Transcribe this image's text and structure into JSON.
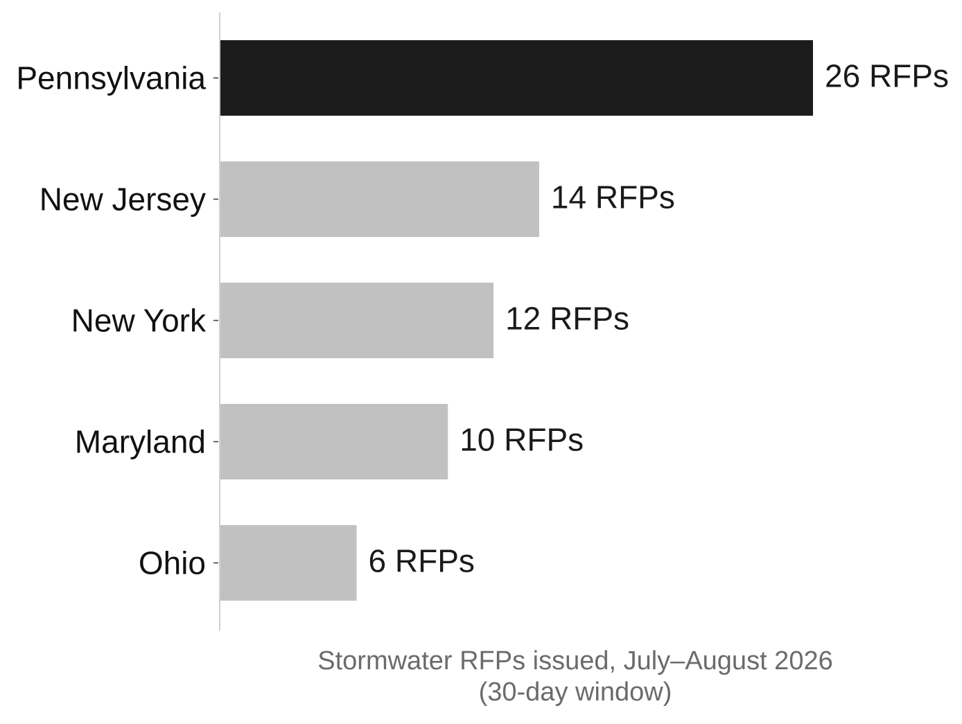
{
  "chart_data": {
    "type": "bar",
    "orientation": "horizontal",
    "categories": [
      "Pennsylvania",
      "New Jersey",
      "New York",
      "Maryland",
      "Ohio"
    ],
    "values": [
      26,
      14,
      12,
      10,
      6
    ],
    "value_labels": [
      "26 RFPs",
      "14 RFPs",
      "12 RFPs",
      "10 RFPs",
      "6 RFPs"
    ],
    "xlabel_lines": [
      "Stormwater RFPs issued, July–August 2026",
      "(30-day window)"
    ],
    "xlim": [
      0,
      26
    ],
    "grid": false,
    "legend": "none",
    "colors": {
      "highlight": "#1c1c1c",
      "default": "#c1c1c1",
      "axis": "#d0d0d0",
      "tick": "#333333"
    },
    "highlight_index": 0
  }
}
